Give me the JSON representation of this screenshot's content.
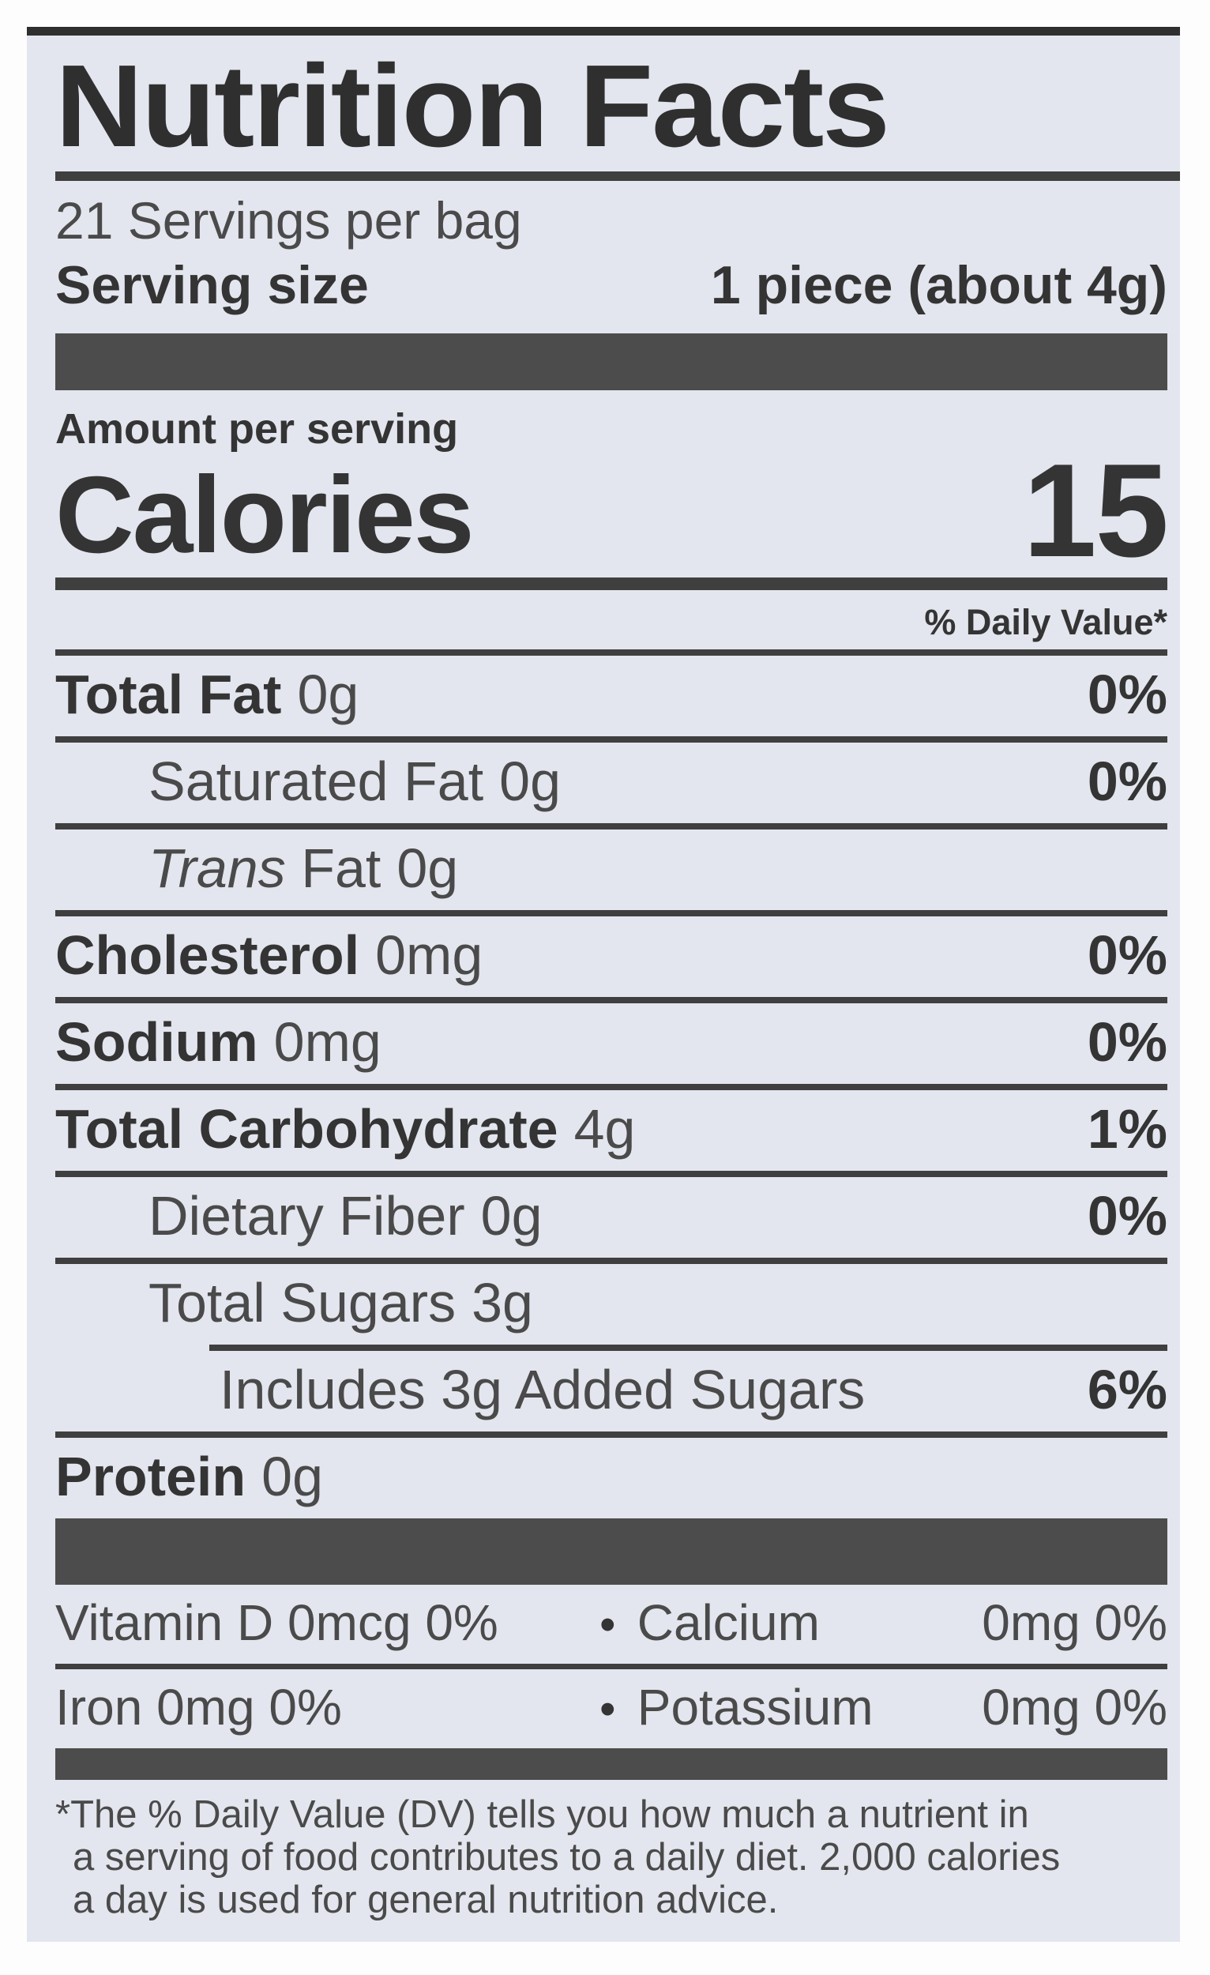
{
  "colors": {
    "page_bg": "#fdfdfe",
    "label_bg": "#e3e6ee",
    "ink": "#343434",
    "ink_light": "#4a4a4a",
    "bar": "#4c4c4c",
    "rule": "#3f3f3f"
  },
  "label": {
    "title": "Nutrition Facts",
    "servings_per_container": "21 Servings per bag",
    "serving_size": {
      "label": "Serving size",
      "value": "1 piece (about 4g)"
    },
    "amount_per_serving": "Amount per serving",
    "calories": {
      "label": "Calories",
      "value": "15"
    },
    "daily_value_header": "% Daily Value*",
    "nutrients": [
      {
        "name": "Total Fat",
        "amount": "0g",
        "dv": "0%"
      },
      {
        "name": "Saturated Fat",
        "amount": "0g",
        "dv": "0%"
      },
      {
        "name_italic": "Trans",
        "name_regular": "Fat",
        "amount": "0g"
      },
      {
        "name": "Cholesterol",
        "amount": "0mg",
        "dv": "0%"
      },
      {
        "name": "Sodium",
        "amount": "0mg",
        "dv": "0%"
      },
      {
        "name": "Total Carbohydrate",
        "amount": "4g",
        "dv": "1%"
      },
      {
        "name": "Dietary Fiber",
        "amount": "0g",
        "dv": "0%"
      },
      {
        "name": "Total Sugars",
        "amount": "3g"
      },
      {
        "name": "Includes 3g Added Sugars",
        "dv": "6%"
      },
      {
        "name": "Protein",
        "amount": "0g"
      }
    ],
    "micronutrients": [
      {
        "left": "Vitamin D 0mcg 0%",
        "bullet": "•",
        "right_name": "Calcium",
        "right_value": "0mg 0%"
      },
      {
        "left": "Iron 0mg 0%",
        "bullet": "•",
        "right_name": "Potassium",
        "right_value": "0mg 0%"
      }
    ],
    "footnote_lines": [
      "*The % Daily Value (DV) tells you how much a nutrient in",
      "a serving of food contributes to a daily diet. 2,000 calories",
      "a day is used for general nutrition advice."
    ]
  }
}
